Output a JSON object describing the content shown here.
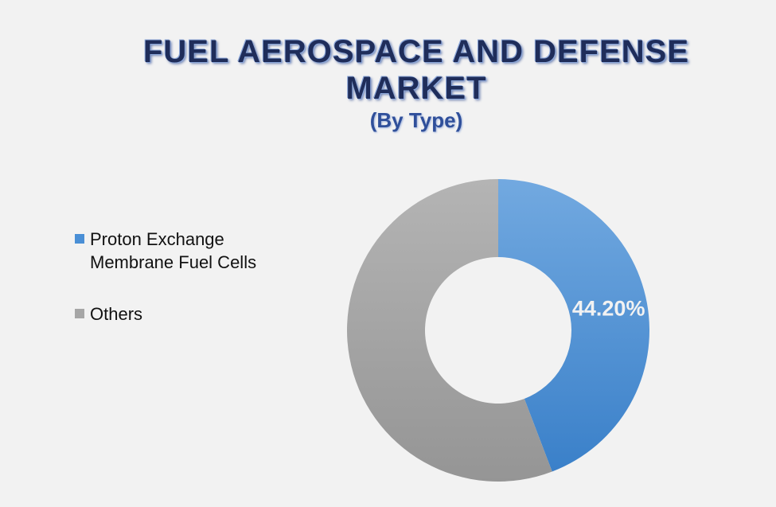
{
  "chart_data": {
    "type": "pie",
    "donut": true,
    "title": "FUEL AEROSPACE AND DEFENSE MARKET",
    "subtitle": "(By Type)",
    "categories": [
      "Proton Exchange Membrane Fuel Cells",
      "Others"
    ],
    "values": [
      44.2,
      55.8
    ],
    "value_labels": [
      "44.20%",
      null
    ],
    "colors": [
      "#4a8fd6",
      "#a6a6a6"
    ]
  }
}
